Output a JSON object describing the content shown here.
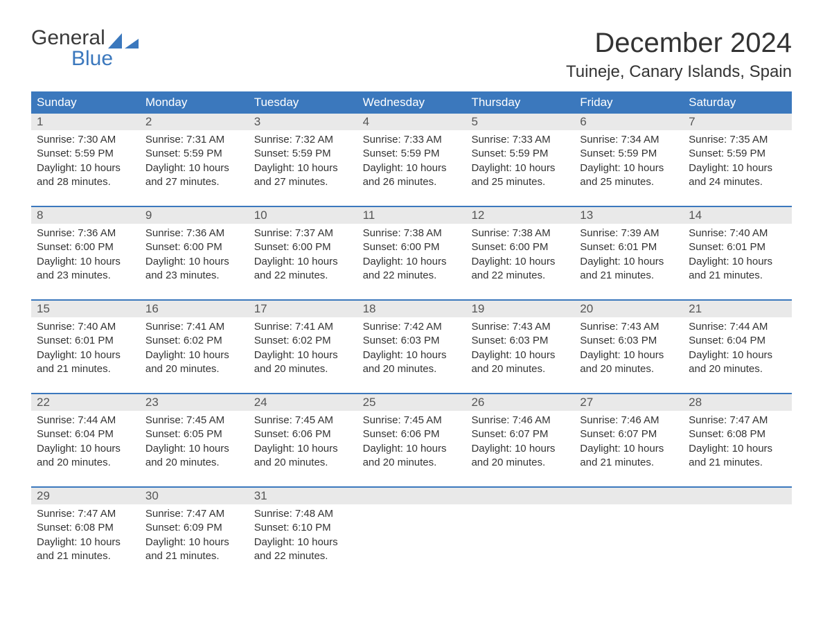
{
  "brand": {
    "word1": "General",
    "word2": "Blue",
    "accent_color": "#3b78bd"
  },
  "title": "December 2024",
  "location": "Tuineje, Canary Islands, Spain",
  "colors": {
    "header_bg": "#3b78bd",
    "header_text": "#ffffff",
    "daynum_bg": "#e9e9e9",
    "text": "#333333",
    "page_bg": "#ffffff",
    "week_border": "#3b78bd"
  },
  "typography": {
    "title_size": 40,
    "location_size": 24,
    "weekday_size": 17,
    "body_size": 15
  },
  "weekdays": [
    "Sunday",
    "Monday",
    "Tuesday",
    "Wednesday",
    "Thursday",
    "Friday",
    "Saturday"
  ],
  "labels": {
    "sunrise": "Sunrise:",
    "sunset": "Sunset:",
    "daylight": "Daylight:",
    "hours": "hours",
    "and": "and",
    "minutes": "minutes."
  },
  "weeks": [
    [
      {
        "n": "1",
        "sunrise": "7:30 AM",
        "sunset": "5:59 PM",
        "dl_h": "10",
        "dl_m": "28"
      },
      {
        "n": "2",
        "sunrise": "7:31 AM",
        "sunset": "5:59 PM",
        "dl_h": "10",
        "dl_m": "27"
      },
      {
        "n": "3",
        "sunrise": "7:32 AM",
        "sunset": "5:59 PM",
        "dl_h": "10",
        "dl_m": "27"
      },
      {
        "n": "4",
        "sunrise": "7:33 AM",
        "sunset": "5:59 PM",
        "dl_h": "10",
        "dl_m": "26"
      },
      {
        "n": "5",
        "sunrise": "7:33 AM",
        "sunset": "5:59 PM",
        "dl_h": "10",
        "dl_m": "25"
      },
      {
        "n": "6",
        "sunrise": "7:34 AM",
        "sunset": "5:59 PM",
        "dl_h": "10",
        "dl_m": "25"
      },
      {
        "n": "7",
        "sunrise": "7:35 AM",
        "sunset": "5:59 PM",
        "dl_h": "10",
        "dl_m": "24"
      }
    ],
    [
      {
        "n": "8",
        "sunrise": "7:36 AM",
        "sunset": "6:00 PM",
        "dl_h": "10",
        "dl_m": "23"
      },
      {
        "n": "9",
        "sunrise": "7:36 AM",
        "sunset": "6:00 PM",
        "dl_h": "10",
        "dl_m": "23"
      },
      {
        "n": "10",
        "sunrise": "7:37 AM",
        "sunset": "6:00 PM",
        "dl_h": "10",
        "dl_m": "22"
      },
      {
        "n": "11",
        "sunrise": "7:38 AM",
        "sunset": "6:00 PM",
        "dl_h": "10",
        "dl_m": "22"
      },
      {
        "n": "12",
        "sunrise": "7:38 AM",
        "sunset": "6:00 PM",
        "dl_h": "10",
        "dl_m": "22"
      },
      {
        "n": "13",
        "sunrise": "7:39 AM",
        "sunset": "6:01 PM",
        "dl_h": "10",
        "dl_m": "21"
      },
      {
        "n": "14",
        "sunrise": "7:40 AM",
        "sunset": "6:01 PM",
        "dl_h": "10",
        "dl_m": "21"
      }
    ],
    [
      {
        "n": "15",
        "sunrise": "7:40 AM",
        "sunset": "6:01 PM",
        "dl_h": "10",
        "dl_m": "21"
      },
      {
        "n": "16",
        "sunrise": "7:41 AM",
        "sunset": "6:02 PM",
        "dl_h": "10",
        "dl_m": "20"
      },
      {
        "n": "17",
        "sunrise": "7:41 AM",
        "sunset": "6:02 PM",
        "dl_h": "10",
        "dl_m": "20"
      },
      {
        "n": "18",
        "sunrise": "7:42 AM",
        "sunset": "6:03 PM",
        "dl_h": "10",
        "dl_m": "20"
      },
      {
        "n": "19",
        "sunrise": "7:43 AM",
        "sunset": "6:03 PM",
        "dl_h": "10",
        "dl_m": "20"
      },
      {
        "n": "20",
        "sunrise": "7:43 AM",
        "sunset": "6:03 PM",
        "dl_h": "10",
        "dl_m": "20"
      },
      {
        "n": "21",
        "sunrise": "7:44 AM",
        "sunset": "6:04 PM",
        "dl_h": "10",
        "dl_m": "20"
      }
    ],
    [
      {
        "n": "22",
        "sunrise": "7:44 AM",
        "sunset": "6:04 PM",
        "dl_h": "10",
        "dl_m": "20"
      },
      {
        "n": "23",
        "sunrise": "7:45 AM",
        "sunset": "6:05 PM",
        "dl_h": "10",
        "dl_m": "20"
      },
      {
        "n": "24",
        "sunrise": "7:45 AM",
        "sunset": "6:06 PM",
        "dl_h": "10",
        "dl_m": "20"
      },
      {
        "n": "25",
        "sunrise": "7:45 AM",
        "sunset": "6:06 PM",
        "dl_h": "10",
        "dl_m": "20"
      },
      {
        "n": "26",
        "sunrise": "7:46 AM",
        "sunset": "6:07 PM",
        "dl_h": "10",
        "dl_m": "20"
      },
      {
        "n": "27",
        "sunrise": "7:46 AM",
        "sunset": "6:07 PM",
        "dl_h": "10",
        "dl_m": "21"
      },
      {
        "n": "28",
        "sunrise": "7:47 AM",
        "sunset": "6:08 PM",
        "dl_h": "10",
        "dl_m": "21"
      }
    ],
    [
      {
        "n": "29",
        "sunrise": "7:47 AM",
        "sunset": "6:08 PM",
        "dl_h": "10",
        "dl_m": "21"
      },
      {
        "n": "30",
        "sunrise": "7:47 AM",
        "sunset": "6:09 PM",
        "dl_h": "10",
        "dl_m": "21"
      },
      {
        "n": "31",
        "sunrise": "7:48 AM",
        "sunset": "6:10 PM",
        "dl_h": "10",
        "dl_m": "22"
      },
      null,
      null,
      null,
      null
    ]
  ]
}
